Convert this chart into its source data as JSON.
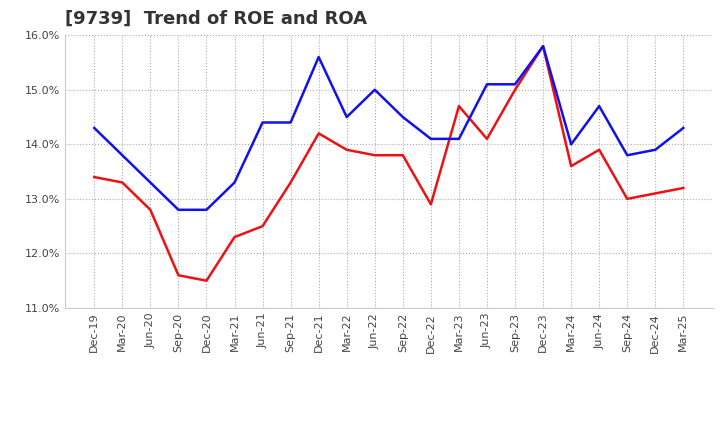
{
  "title": "[9739]  Trend of ROE and ROA",
  "x_labels": [
    "Dec-19",
    "Mar-20",
    "Jun-20",
    "Sep-20",
    "Dec-20",
    "Mar-21",
    "Jun-21",
    "Sep-21",
    "Dec-21",
    "Mar-22",
    "Jun-22",
    "Sep-22",
    "Dec-22",
    "Mar-23",
    "Jun-23",
    "Sep-23",
    "Dec-23",
    "Mar-24",
    "Jun-24",
    "Sep-24",
    "Dec-24",
    "Mar-25"
  ],
  "roe": [
    13.4,
    13.3,
    12.8,
    11.6,
    11.5,
    12.3,
    12.5,
    13.3,
    14.2,
    13.9,
    13.8,
    13.8,
    12.9,
    14.7,
    14.1,
    15.0,
    15.8,
    13.6,
    13.9,
    13.0,
    13.1,
    13.2
  ],
  "roa": [
    14.3,
    13.8,
    13.3,
    12.8,
    12.8,
    13.3,
    14.4,
    14.4,
    15.6,
    14.5,
    15.0,
    14.5,
    14.1,
    14.1,
    15.1,
    15.1,
    15.8,
    14.0,
    14.7,
    13.8,
    13.9,
    14.3
  ],
  "roe_color": "#ee1111",
  "roa_color": "#1111ee",
  "ylim_min": 11.0,
  "ylim_max": 16.0,
  "yticks": [
    11.0,
    12.0,
    13.0,
    14.0,
    15.0,
    16.0
  ],
  "background_color": "#ffffff",
  "plot_background": "#ffffff",
  "grid_color": "#aaaaaa",
  "line_width": 1.8,
  "title_fontsize": 13,
  "tick_fontsize": 8,
  "legend_fontsize": 10
}
